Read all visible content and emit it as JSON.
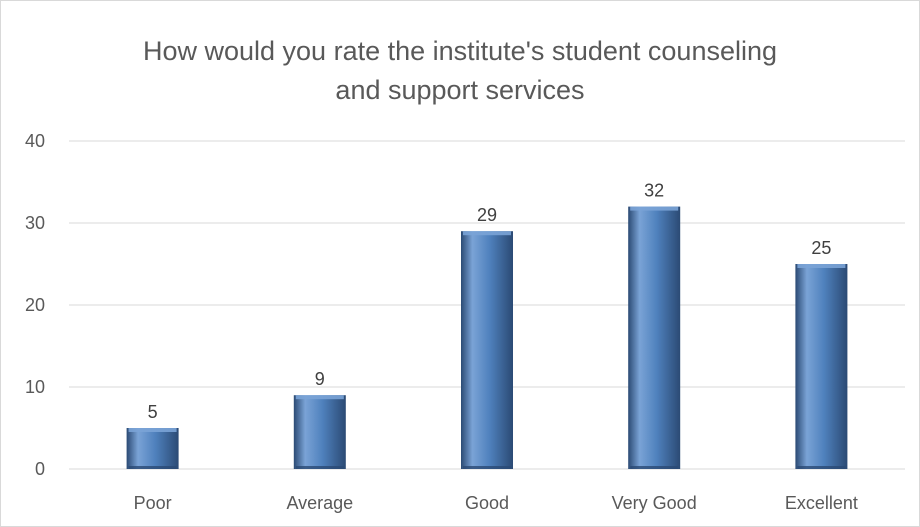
{
  "chart_data": {
    "type": "bar",
    "title_lines": [
      "How would you rate the institute's student counseling",
      "and support services"
    ],
    "categories": [
      "Poor",
      "Average",
      "Good",
      "Very Good",
      "Excellent"
    ],
    "values": [
      5,
      9,
      29,
      32,
      25
    ],
    "data_labels": [
      "5",
      "9",
      "29",
      "32",
      "25"
    ],
    "ylim": [
      0,
      40
    ],
    "yticks": [
      0,
      10,
      20,
      30,
      40
    ],
    "ytick_labels": [
      "0",
      "10",
      "20",
      "30",
      "40"
    ],
    "xlabel": "",
    "ylabel": "",
    "grid": true,
    "legend": "none",
    "colors": {
      "bar_fill": "#4f81bd",
      "bar_light": "#7aa3d6",
      "bar_dark": "#2b4a74",
      "grid": "#d9d9d9",
      "text": "#595959",
      "data_label": "#404040"
    }
  }
}
